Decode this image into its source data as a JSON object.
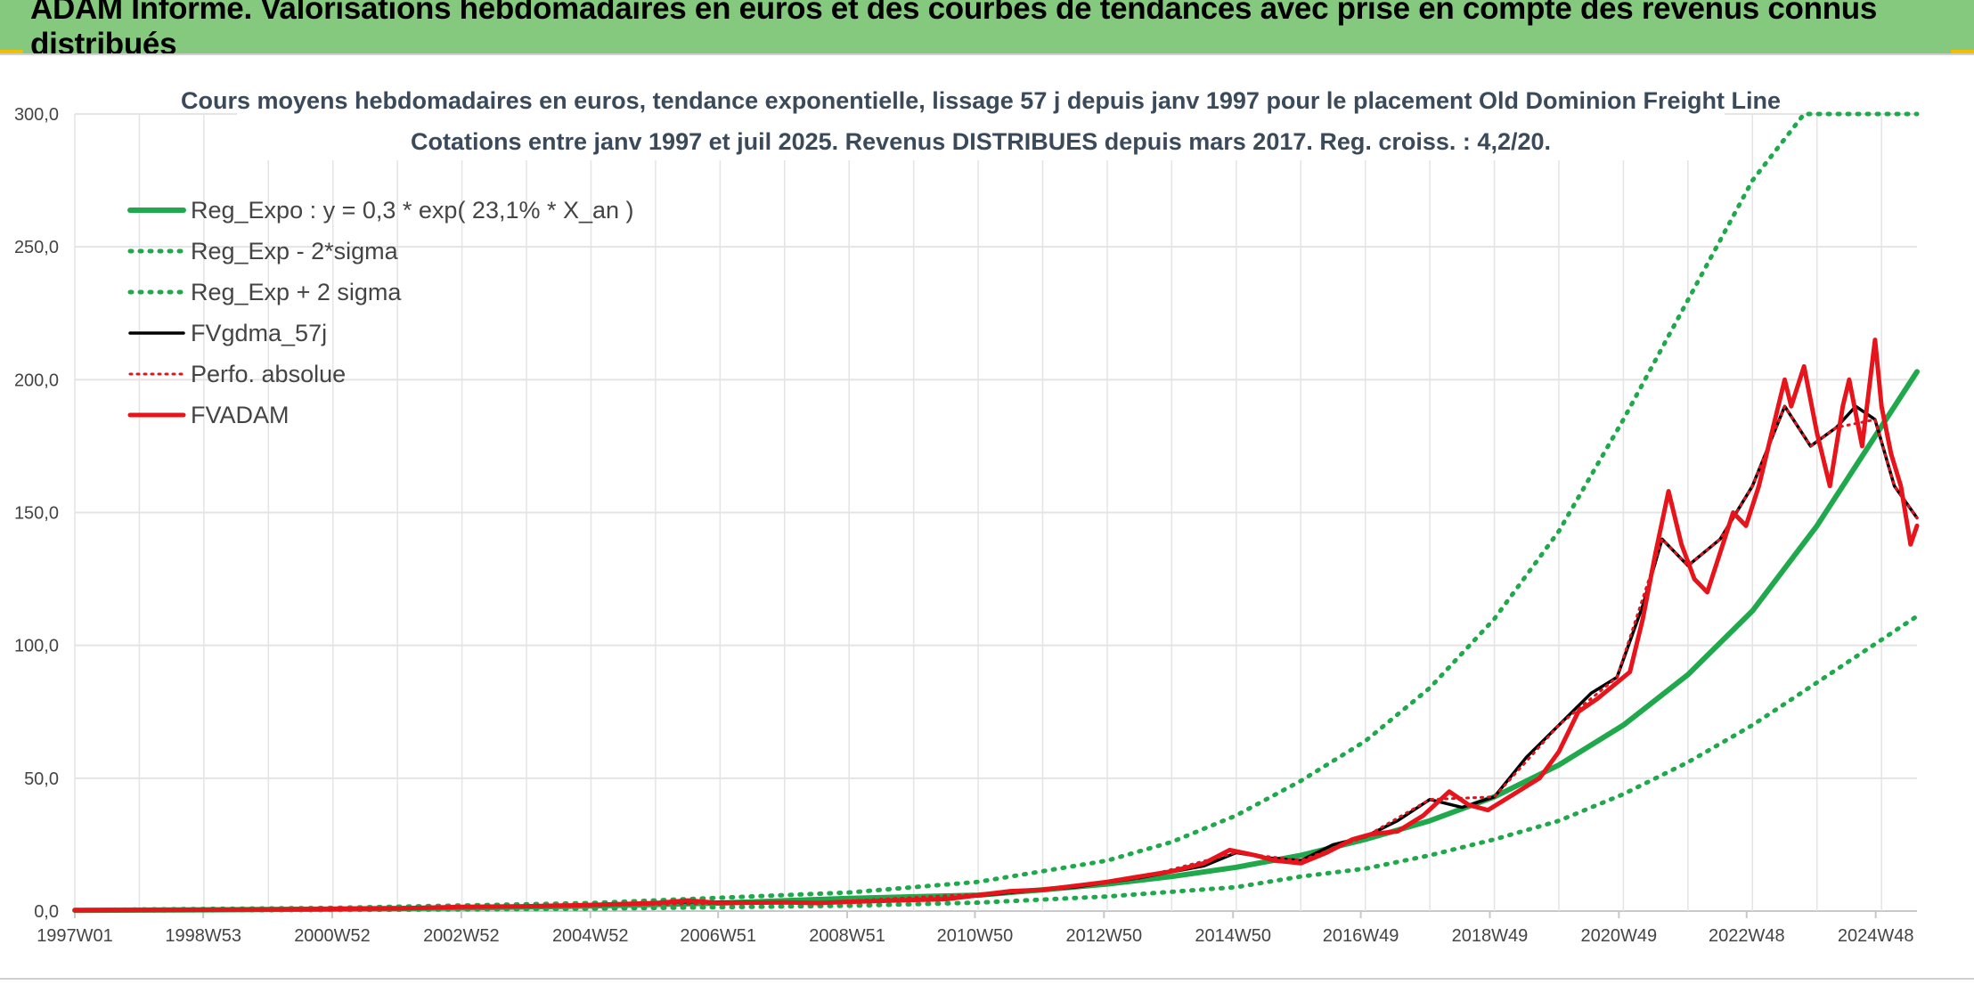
{
  "header": {
    "title": "ADAM Informe. Valorisations hebdomadaires en euros et des courbes de tendances avec prise en compte des revenus connus distribués"
  },
  "colors": {
    "banner": "#84c97d",
    "reg_expo": "#1fa84c",
    "sigma_band": "#1fa84c",
    "fvgdma": "#000000",
    "perfo": "#e0141e",
    "fvadam": "#e8141b",
    "grid": "#e4e4e4"
  },
  "chart_data": {
    "type": "line",
    "title": "Cours moyens hebdomadaires en euros, tendance exponentielle, lissage 57 j depuis janv 1997 pour le placement Old Dominion Freight Line",
    "subtitle": "Cotations entre janv 1997 et juil 2025. Revenus DISTRIBUES depuis mars 2017. Reg. croiss. : 4,2/20.",
    "xlabel": "",
    "ylabel": "",
    "ylim": [
      0,
      300
    ],
    "yticks": [
      "0,0",
      "50,0",
      "100,0",
      "150,0",
      "200,0",
      "250,0",
      "300,0"
    ],
    "xlim": [
      1997.0,
      2025.55
    ],
    "xticks": [
      {
        "label": "1997W01",
        "x": 1997.0
      },
      {
        "label": "1998W53",
        "x": 1998.99
      },
      {
        "label": "2000W52",
        "x": 2000.99
      },
      {
        "label": "2002W52",
        "x": 2002.99
      },
      {
        "label": "2004W52",
        "x": 2004.99
      },
      {
        "label": "2006W51",
        "x": 2006.97
      },
      {
        "label": "2008W51",
        "x": 2008.97
      },
      {
        "label": "2010W50",
        "x": 2010.95
      },
      {
        "label": "2012W50",
        "x": 2012.95
      },
      {
        "label": "2014W50",
        "x": 2014.95
      },
      {
        "label": "2016W49",
        "x": 2016.93
      },
      {
        "label": "2018W49",
        "x": 2018.93
      },
      {
        "label": "2020W49",
        "x": 2020.93
      },
      {
        "label": "2022W48",
        "x": 2022.91
      },
      {
        "label": "2024W48",
        "x": 2024.91
      }
    ],
    "grid": "vertical and horizontal",
    "legend_position": "top-left",
    "series": [
      {
        "name": "Reg_Expo : y = 0,3 * exp( 23,1% *  X_an )",
        "style": "solid-thick",
        "x": [
          1997.0,
          1999,
          2001,
          2003,
          2005,
          2007,
          2009,
          2011,
          2012,
          2013,
          2014,
          2015,
          2016,
          2017,
          2018,
          2019,
          2020,
          2021,
          2022,
          2023,
          2024,
          2025.55
        ],
        "y": [
          0.3,
          0.48,
          0.76,
          1.2,
          1.9,
          3.0,
          4.8,
          6.0,
          8.0,
          10.2,
          13.0,
          16.5,
          21.0,
          27.0,
          34.0,
          43.0,
          55.0,
          70.0,
          89.0,
          113.0,
          145.0,
          203.0
        ]
      },
      {
        "name": "Reg_Exp - 2*sigma",
        "style": "dotted",
        "x": [
          1997.0,
          2001,
          2005,
          2009,
          2011,
          2013,
          2015,
          2016,
          2017,
          2018,
          2019,
          2020,
          2021,
          2022,
          2023,
          2024,
          2025.55
        ],
        "y": [
          0.2,
          0.4,
          0.9,
          2.0,
          3.2,
          5.5,
          9.0,
          13.0,
          16.0,
          21.0,
          27.0,
          34.0,
          44.0,
          56.0,
          70.0,
          86.0,
          111.0
        ]
      },
      {
        "name": "Reg_Exp + 2 sigma",
        "style": "dotted",
        "x": [
          1997.0,
          2001,
          2005,
          2009,
          2011,
          2013,
          2014,
          2015,
          2016,
          2017,
          2018,
          2019,
          2020,
          2021,
          2022,
          2023,
          2023.8,
          2025.55
        ],
        "y": [
          0.4,
          1.2,
          3.0,
          7.0,
          11.0,
          19.0,
          26.0,
          36.0,
          49.0,
          64.0,
          84.0,
          110.0,
          143.0,
          185.0,
          230.0,
          275.0,
          300.0,
          300.0
        ]
      },
      {
        "name": "FVgdma_57j",
        "style": "solid",
        "x": [
          1997.0,
          1999,
          2001,
          2003,
          2005,
          2006.5,
          2008.5,
          2010.5,
          2011.5,
          2012.5,
          2013.5,
          2014.5,
          2015,
          2015.5,
          2016,
          2016.5,
          2017,
          2017.5,
          2018,
          2018.5,
          2019,
          2019.5,
          2020,
          2020.5,
          2020.9,
          2021.3,
          2021.6,
          2022,
          2022.5,
          2023,
          2023.5,
          2023.9,
          2024.3,
          2024.6,
          2024.9,
          2025.2,
          2025.55
        ],
        "y": [
          0.3,
          0.5,
          0.8,
          1.5,
          2.3,
          3.5,
          3.2,
          4.5,
          7.0,
          9.0,
          12.5,
          17.0,
          22.0,
          20.0,
          19.0,
          25.0,
          28.0,
          34.0,
          42.0,
          39.0,
          43.0,
          58.0,
          70.0,
          82.0,
          88.0,
          115.0,
          140.0,
          130.0,
          140.0,
          160.0,
          190.0,
          175.0,
          182.0,
          190.0,
          185.0,
          160.0,
          148.0
        ]
      },
      {
        "name": "Perfo. absolue",
        "style": "dotted-red",
        "x": [
          1997.0,
          2001,
          2005,
          2008.5,
          2011.5,
          2013.5,
          2015,
          2016,
          2017,
          2018,
          2019,
          2020,
          2020.9,
          2021.6,
          2022,
          2022.5,
          2023,
          2023.5,
          2023.9,
          2024.3,
          2024.9,
          2025.2,
          2025.55
        ],
        "y": [
          0.3,
          0.8,
          2.3,
          3.2,
          7.0,
          12.5,
          22.0,
          19.0,
          28.0,
          42.0,
          43.0,
          70.0,
          88.0,
          140.0,
          130.0,
          140.0,
          160.0,
          190.0,
          175.0,
          182.0,
          185.0,
          160.0,
          148.0
        ]
      },
      {
        "name": "FVADAM",
        "style": "solid-thick-red",
        "x": [
          1997.0,
          1998,
          1999,
          2000,
          2001,
          2002,
          2003,
          2004,
          2005,
          2006,
          2006.5,
          2007,
          2008,
          2008.5,
          2009,
          2010,
          2010.5,
          2011,
          2011.5,
          2012,
          2012.5,
          2013,
          2013.5,
          2014,
          2014.5,
          2014.9,
          2015.3,
          2015.6,
          2016,
          2016.4,
          2016.8,
          2017.1,
          2017.5,
          2017.9,
          2018.3,
          2018.6,
          2018.9,
          2019.3,
          2019.7,
          2020.0,
          2020.3,
          2020.6,
          2020.9,
          2021.1,
          2021.3,
          2021.5,
          2021.7,
          2021.9,
          2022.1,
          2022.3,
          2022.5,
          2022.7,
          2022.9,
          2023.1,
          2023.3,
          2023.5,
          2023.6,
          2023.8,
          2024.0,
          2024.2,
          2024.4,
          2024.5,
          2024.7,
          2024.9,
          2025.0,
          2025.15,
          2025.3,
          2025.45,
          2025.55
        ],
        "y": [
          0.3,
          0.4,
          0.5,
          0.6,
          0.8,
          1.0,
          1.6,
          1.8,
          2.3,
          3.0,
          4.0,
          3.0,
          3.3,
          3.0,
          3.5,
          4.2,
          4.5,
          6.0,
          7.5,
          8.0,
          9.5,
          11.0,
          13.0,
          15.0,
          18.0,
          23.0,
          21.0,
          19.0,
          18.0,
          22.0,
          27.0,
          29.0,
          30.0,
          36.0,
          45.0,
          40.0,
          38.0,
          44.0,
          50.0,
          60.0,
          75.0,
          80.0,
          86.0,
          90.0,
          110.0,
          135.0,
          158.0,
          138.0,
          125.0,
          120.0,
          135.0,
          150.0,
          145.0,
          160.0,
          180.0,
          200.0,
          190.0,
          205.0,
          180.0,
          160.0,
          190.0,
          200.0,
          175.0,
          215.0,
          190.0,
          172.0,
          160.0,
          138.0,
          145.0
        ]
      }
    ]
  }
}
